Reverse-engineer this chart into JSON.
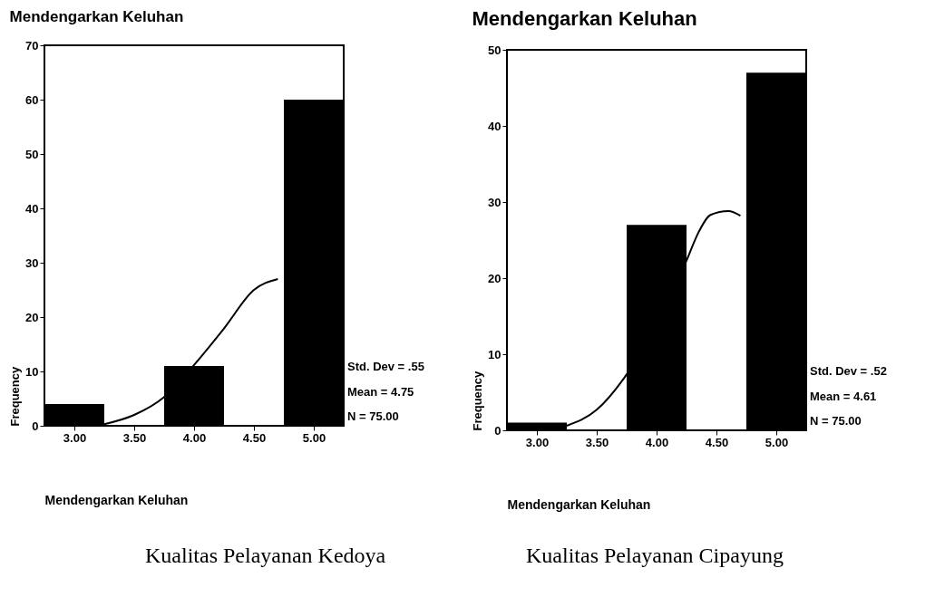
{
  "chart_data": [
    {
      "type": "histogram",
      "title": "Mendengarkan Keluhan",
      "xlabel": "Mendengarkan Keluhan",
      "ylabel": "Frequency",
      "bins": [
        2.75,
        3.25,
        3.75,
        4.25,
        4.75,
        5.25
      ],
      "values": [
        4,
        0,
        11,
        0,
        60
      ],
      "color": "#000000",
      "series": [
        {
          "type": "line",
          "color": "#000000",
          "x": [
            3.25,
            3.5,
            3.75,
            4.0,
            4.25,
            4.5,
            4.7
          ],
          "values": [
            0.3,
            2,
            5.3,
            11.2,
            17.9,
            25,
            27
          ]
        }
      ],
      "xlim": [
        2.75,
        5.25
      ],
      "xticks": [
        {
          "value": 3,
          "label": "3.00"
        },
        {
          "value": 3.5,
          "label": "3.50"
        },
        {
          "value": 4,
          "label": "4.00"
        },
        {
          "value": 4.5,
          "label": "4.50"
        },
        {
          "value": 5,
          "label": "5.00"
        }
      ],
      "ylim": [
        0,
        70
      ],
      "yticks": [
        0,
        10,
        20,
        30,
        40,
        50,
        60,
        70
      ],
      "annotations": [
        "Std. Dev = .55",
        "Mean = 4.75",
        "N = 75.00",
        "Kualitas Pelayanan Kedoya"
      ]
    },
    {
      "type": "histogram",
      "title": "Mendengarkan Keluhan",
      "xlabel": "Mendengarkan Keluhan",
      "ylabel": "Frequency",
      "bins": [
        2.75,
        3.25,
        3.75,
        4.25,
        4.75,
        5.25
      ],
      "values": [
        1,
        0,
        27,
        0,
        47
      ],
      "color": "#000000",
      "series": [
        {
          "type": "line",
          "color": "#000000",
          "x": [
            3.25,
            3.5,
            3.73,
            4.25,
            4.35,
            4.45,
            4.6,
            4.7
          ],
          "values": [
            0.6,
            2.7,
            6.9,
            22.3,
            26,
            28.3,
            28.8,
            28.2
          ]
        }
      ],
      "xlim": [
        2.75,
        5.25
      ],
      "xticks": [
        {
          "value": 3,
          "label": "3.00"
        },
        {
          "value": 3.5,
          "label": "3.50"
        },
        {
          "value": 4,
          "label": "4.00"
        },
        {
          "value": 4.5,
          "label": "4.50"
        },
        {
          "value": 5,
          "label": "5.00"
        }
      ],
      "ylim": [
        0,
        50
      ],
      "yticks": [
        0,
        10,
        20,
        30,
        40,
        50
      ],
      "annotations": [
        "Std. Dev = .52",
        "Mean = 4.61",
        "N = 75.00",
        "Kualitas Pelayanan Cipayung"
      ]
    }
  ]
}
